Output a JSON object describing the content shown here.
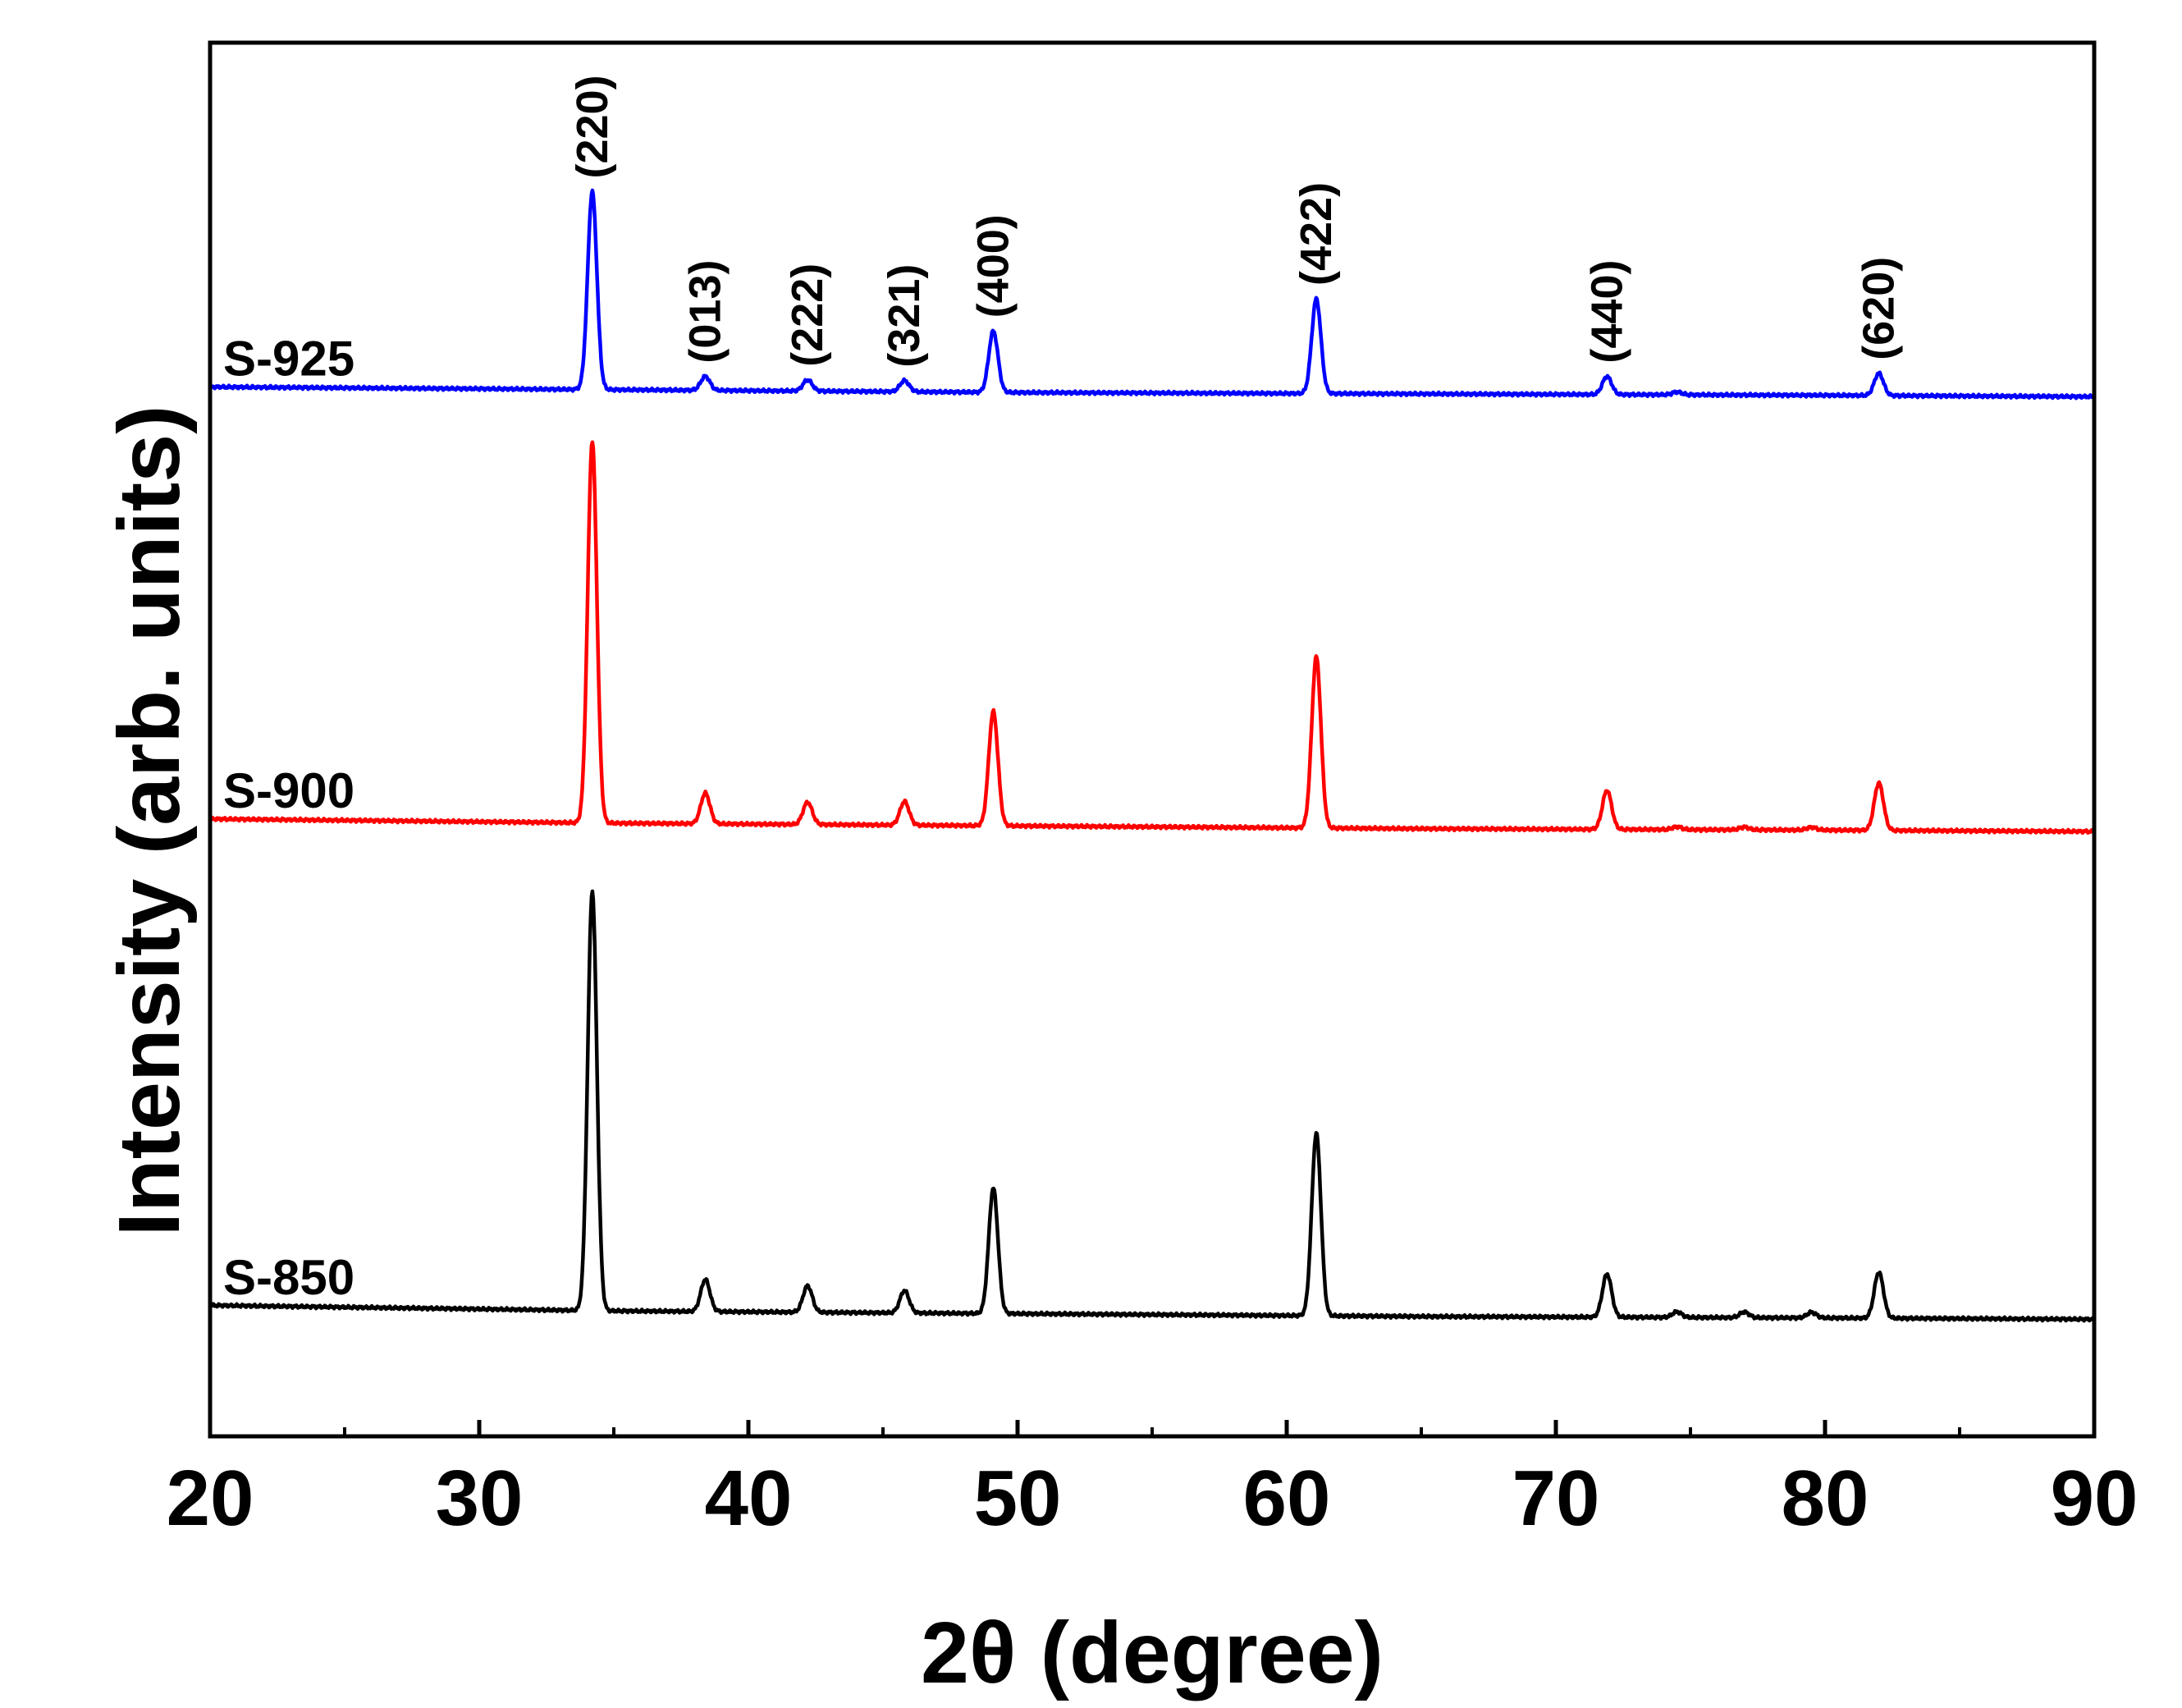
{
  "chart_data": {
    "type": "line",
    "title": "",
    "xlabel": "2θ (degree)",
    "ylabel": "Intensity (arb. units)",
    "xlim": [
      20,
      90
    ],
    "ylim": [
      0,
      100
    ],
    "xticks": [
      20,
      30,
      40,
      50,
      60,
      70,
      80,
      90
    ],
    "minor_xticks": [
      25,
      35,
      45,
      55,
      65,
      75,
      85
    ],
    "y_ticks_shown": false,
    "grid": false,
    "legend": "none (series labelled inline at left)",
    "series": [
      {
        "name": "S-925",
        "color": "#0000ff",
        "baseline": [
          [
            20,
            75.3
          ],
          [
            35,
            75.1
          ],
          [
            50,
            74.9
          ],
          [
            65,
            74.8
          ],
          [
            80,
            74.7
          ],
          [
            90,
            74.6
          ]
        ],
        "peaks": [
          {
            "x": 34.2,
            "height": 14.2
          },
          {
            "x": 38.4,
            "height": 1.0
          },
          {
            "x": 42.2,
            "height": 0.8
          },
          {
            "x": 45.8,
            "height": 0.8
          },
          {
            "x": 49.1,
            "height": 4.4
          },
          {
            "x": 61.1,
            "height": 6.8
          },
          {
            "x": 71.9,
            "height": 1.3
          },
          {
            "x": 74.5,
            "height": 0.2
          },
          {
            "x": 82.0,
            "height": 1.6
          }
        ]
      },
      {
        "name": "S-900",
        "color": "#ff0000",
        "baseline": [
          [
            20,
            44.3
          ],
          [
            35,
            44.0
          ],
          [
            50,
            43.8
          ],
          [
            65,
            43.6
          ],
          [
            80,
            43.5
          ],
          [
            90,
            43.4
          ]
        ],
        "peaks": [
          {
            "x": 34.2,
            "height": 27.4
          },
          {
            "x": 38.4,
            "height": 2.2
          },
          {
            "x": 42.2,
            "height": 1.6
          },
          {
            "x": 45.8,
            "height": 1.7
          },
          {
            "x": 49.1,
            "height": 8.2
          },
          {
            "x": 61.1,
            "height": 12.3
          },
          {
            "x": 71.9,
            "height": 2.8
          },
          {
            "x": 74.5,
            "height": 0.2
          },
          {
            "x": 77.0,
            "height": 0.2
          },
          {
            "x": 79.5,
            "height": 0.2
          },
          {
            "x": 82.0,
            "height": 3.4
          }
        ]
      },
      {
        "name": "S-850",
        "color": "#000000",
        "baseline": [
          [
            20,
            9.4
          ],
          [
            35,
            9.0
          ],
          [
            50,
            8.8
          ],
          [
            65,
            8.6
          ],
          [
            80,
            8.5
          ],
          [
            90,
            8.4
          ]
        ],
        "peaks": [
          {
            "x": 34.2,
            "height": 30.1
          },
          {
            "x": 38.4,
            "height": 2.3
          },
          {
            "x": 42.2,
            "height": 1.9
          },
          {
            "x": 45.8,
            "height": 1.6
          },
          {
            "x": 49.1,
            "height": 9.0
          },
          {
            "x": 61.1,
            "height": 13.1
          },
          {
            "x": 71.9,
            "height": 3.1
          },
          {
            "x": 74.5,
            "height": 0.4
          },
          {
            "x": 77.0,
            "height": 0.4
          },
          {
            "x": 79.5,
            "height": 0.4
          },
          {
            "x": 82.0,
            "height": 3.3
          }
        ]
      }
    ],
    "annotations": [
      {
        "text": "(220)",
        "x": 34.2
      },
      {
        "text": "(013)",
        "x": 38.4
      },
      {
        "text": "(222)",
        "x": 42.2
      },
      {
        "text": "(321)",
        "x": 45.8
      },
      {
        "text": "(400)",
        "x": 49.1
      },
      {
        "text": "(422)",
        "x": 61.1
      },
      {
        "text": "(440)",
        "x": 71.9
      },
      {
        "text": "(620)",
        "x": 82.0
      }
    ]
  }
}
